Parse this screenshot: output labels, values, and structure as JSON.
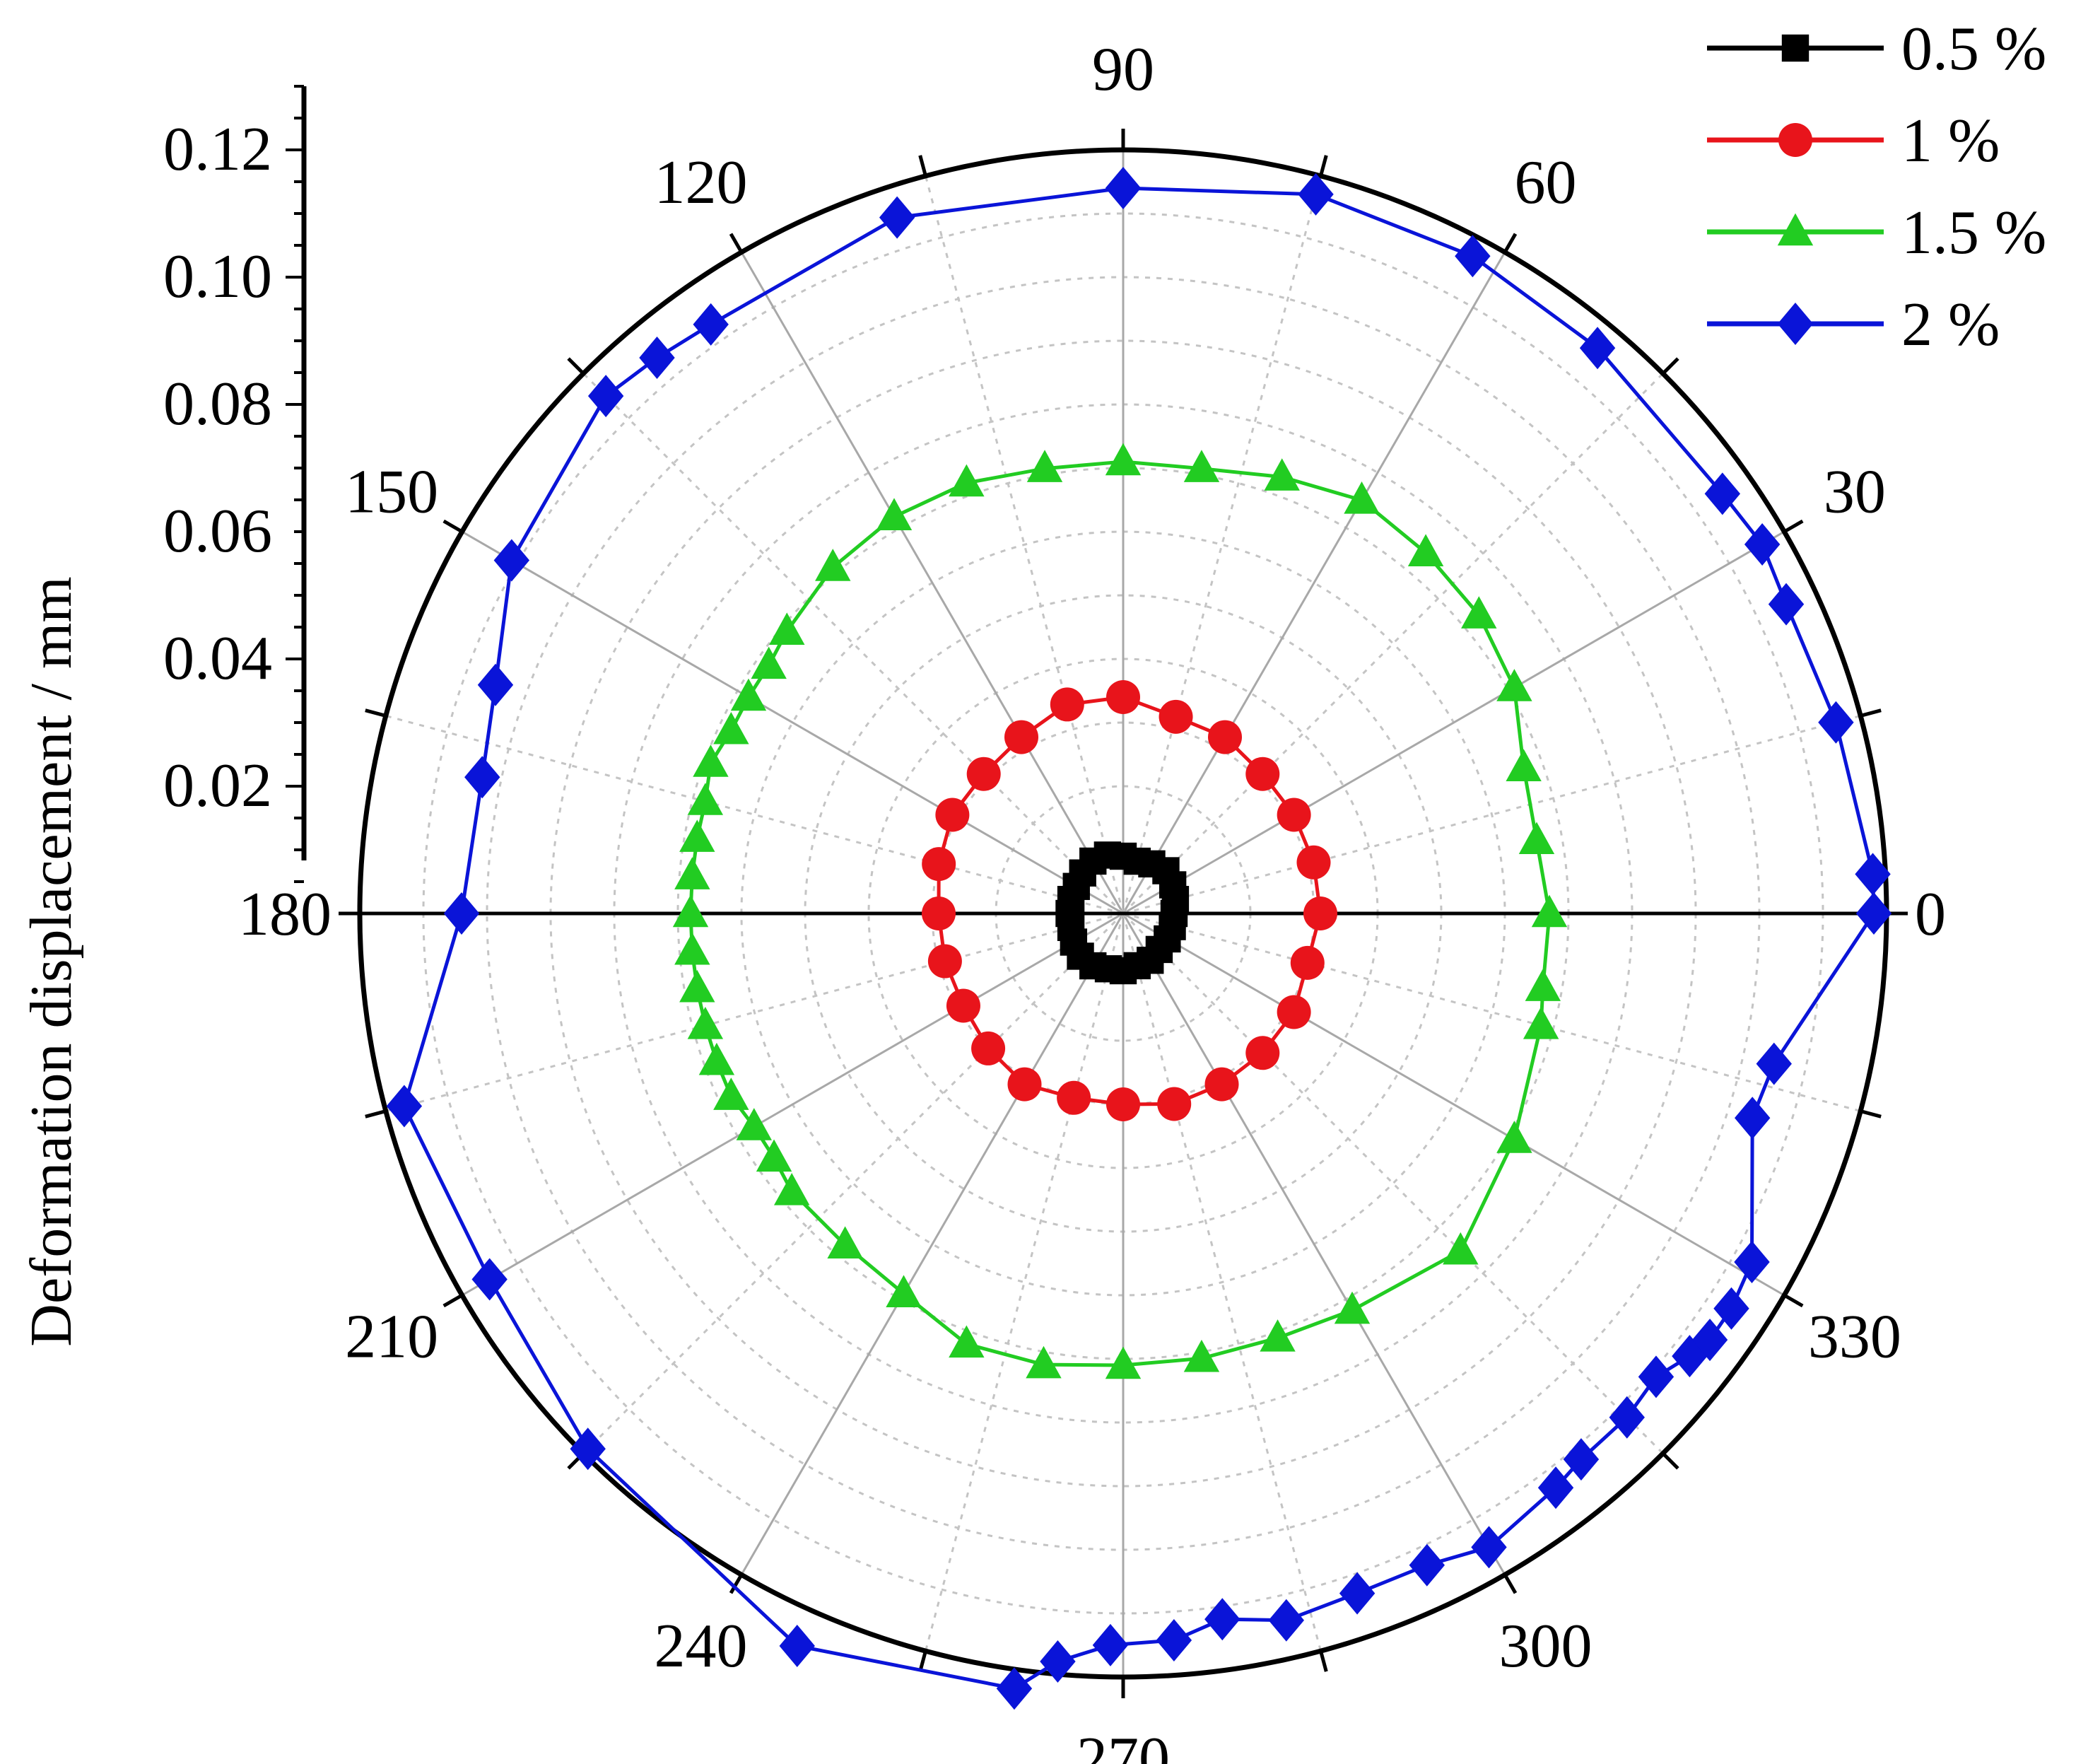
{
  "chart_data": {
    "type": "polar",
    "title": "",
    "ylabel": "Deformation displacement / mm",
    "radial_range": [
      0,
      0.12
    ],
    "radial_ticks": [
      "0.02",
      "0.04",
      "0.06",
      "0.08",
      "0.10",
      "0.12"
    ],
    "radial_tick_values": [
      0.02,
      0.04,
      0.06,
      0.08,
      0.1,
      0.12
    ],
    "angle_ticks": [
      "0",
      "30",
      "60",
      "90",
      "120",
      "150",
      "180",
      "210",
      "240",
      "270",
      "300",
      "330"
    ],
    "angle_tick_values": [
      0,
      30,
      60,
      90,
      120,
      150,
      180,
      210,
      240,
      270,
      300,
      330
    ],
    "grid": true,
    "legend_position": "top-right",
    "series": [
      {
        "name": "0.5 %",
        "color": "#000000",
        "marker": "square",
        "points": [
          [
            0,
            0.008
          ],
          [
            15,
            0.0085
          ],
          [
            30,
            0.009
          ],
          [
            45,
            0.0095
          ],
          [
            60,
            0.009
          ],
          [
            75,
            0.0085
          ],
          [
            90,
            0.009
          ],
          [
            105,
            0.0095
          ],
          [
            120,
            0.0095
          ],
          [
            135,
            0.009
          ],
          [
            150,
            0.0085
          ],
          [
            165,
            0.0085
          ],
          [
            180,
            0.0085
          ],
          [
            195,
            0.0085
          ],
          [
            210,
            0.009
          ],
          [
            225,
            0.0095
          ],
          [
            240,
            0.0095
          ],
          [
            255,
            0.009
          ],
          [
            270,
            0.009
          ],
          [
            285,
            0.0085
          ],
          [
            300,
            0.0085
          ],
          [
            315,
            0.008
          ],
          [
            330,
            0.008
          ],
          [
            345,
            0.008
          ],
          [
            0,
            0.008
          ]
        ]
      },
      {
        "name": "1 %",
        "color": "#e8141b",
        "marker": "circle",
        "points": [
          [
            0,
            0.031
          ],
          [
            15,
            0.031
          ],
          [
            30,
            0.031
          ],
          [
            45,
            0.031
          ],
          [
            60,
            0.032
          ],
          [
            75,
            0.032
          ],
          [
            90,
            0.034
          ],
          [
            105,
            0.034
          ],
          [
            120,
            0.032
          ],
          [
            135,
            0.031
          ],
          [
            150,
            0.031
          ],
          [
            165,
            0.03
          ],
          [
            180,
            0.029
          ],
          [
            195,
            0.029
          ],
          [
            210,
            0.029
          ],
          [
            225,
            0.03
          ],
          [
            240,
            0.031
          ],
          [
            255,
            0.03
          ],
          [
            270,
            0.03
          ],
          [
            285,
            0.031
          ],
          [
            300,
            0.031
          ],
          [
            315,
            0.031
          ],
          [
            330,
            0.031
          ],
          [
            345,
            0.03
          ],
          [
            0,
            0.031
          ]
        ]
      },
      {
        "name": "1.5 %",
        "color": "#22cc22",
        "marker": "triangle",
        "points": [
          [
            0,
            0.067
          ],
          [
            10,
            0.066
          ],
          [
            20,
            0.067
          ],
          [
            30,
            0.071
          ],
          [
            40,
            0.073
          ],
          [
            50,
            0.074
          ],
          [
            60,
            0.075
          ],
          [
            70,
            0.073
          ],
          [
            80,
            0.071
          ],
          [
            90,
            0.071
          ],
          [
            100,
            0.071
          ],
          [
            110,
            0.072
          ],
          [
            120,
            0.072
          ],
          [
            130,
            0.071
          ],
          [
            140,
            0.069
          ],
          [
            145,
            0.068
          ],
          [
            150,
            0.068
          ],
          [
            155,
            0.068
          ],
          [
            160,
            0.069
          ],
          [
            165,
            0.068
          ],
          [
            170,
            0.068
          ],
          [
            175,
            0.068
          ],
          [
            180,
            0.068
          ],
          [
            185,
            0.068
          ],
          [
            190,
            0.068
          ],
          [
            195,
            0.068
          ],
          [
            200,
            0.068
          ],
          [
            205,
            0.068
          ],
          [
            210,
            0.067
          ],
          [
            215,
            0.067
          ],
          [
            220,
            0.068
          ],
          [
            230,
            0.068
          ],
          [
            240,
            0.069
          ],
          [
            250,
            0.072
          ],
          [
            260,
            0.072
          ],
          [
            270,
            0.071
          ],
          [
            280,
            0.071
          ],
          [
            290,
            0.071
          ],
          [
            300,
            0.072
          ],
          [
            315,
            0.075
          ],
          [
            330,
            0.071
          ],
          [
            345,
            0.068
          ],
          [
            350,
            0.067
          ],
          [
            0,
            0.067
          ]
        ]
      },
      {
        "name": "2 %",
        "color": "#0a14d8",
        "marker": "diamond",
        "points": [
          [
            0,
            0.118
          ],
          [
            3,
            0.118
          ],
          [
            15,
            0.116
          ],
          [
            25,
            0.115
          ],
          [
            30,
            0.116
          ],
          [
            35,
            0.115
          ],
          [
            50,
            0.116
          ],
          [
            62,
            0.117
          ],
          [
            75,
            0.117
          ],
          [
            90,
            0.114
          ],
          [
            108,
            0.115
          ],
          [
            125,
            0.113
          ],
          [
            130,
            0.114
          ],
          [
            135,
            0.115
          ],
          [
            150,
            0.111
          ],
          [
            160,
            0.105
          ],
          [
            168,
            0.103
          ],
          [
            180,
            0.104
          ],
          [
            195,
            0.117
          ],
          [
            210,
            0.115
          ],
          [
            225,
            0.119
          ],
          [
            246,
            0.126
          ],
          [
            262,
            0.123
          ],
          [
            265,
            0.118
          ],
          [
            269,
            0.115
          ],
          [
            274,
            0.1145
          ],
          [
            278,
            0.112
          ],
          [
            283,
            0.114
          ],
          [
            289,
            0.113
          ],
          [
            295,
            0.113
          ],
          [
            300,
            0.115
          ],
          [
            307,
            0.113
          ],
          [
            310,
            0.112
          ],
          [
            315,
            0.112
          ],
          [
            319,
            0.111
          ],
          [
            322,
            0.113
          ],
          [
            324,
            0.114
          ],
          [
            327,
            0.114
          ],
          [
            331,
            0.113
          ],
          [
            342,
            0.104
          ],
          [
            347,
            0.105
          ],
          [
            0,
            0.118
          ]
        ]
      }
    ]
  }
}
